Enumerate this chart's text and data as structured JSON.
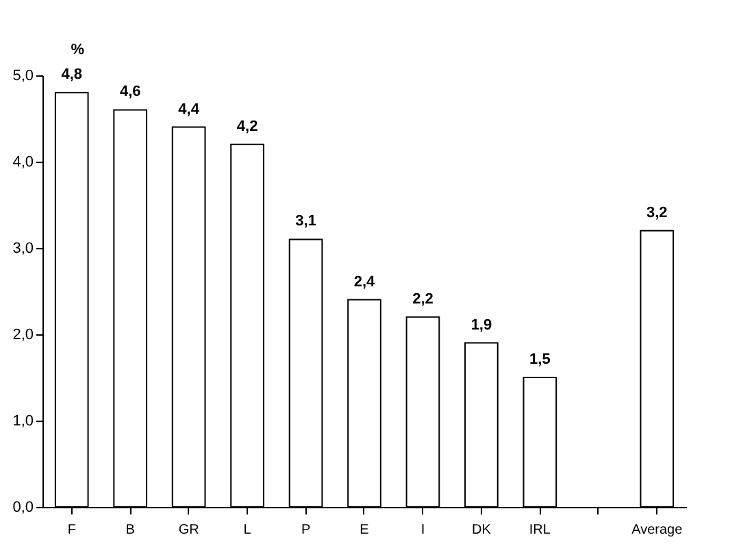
{
  "chart_data": {
    "type": "bar",
    "ylabel": "%",
    "categories": [
      "F",
      "B",
      "GR",
      "L",
      "P",
      "E",
      "I",
      "DK",
      "IRL",
      null,
      "Average"
    ],
    "values": [
      4.8,
      4.6,
      4.4,
      4.2,
      3.1,
      2.4,
      2.2,
      1.9,
      1.5,
      null,
      3.2
    ],
    "value_labels": [
      "4,8",
      "4,6",
      "4,4",
      "4,2",
      "3,1",
      "2,4",
      "2,2",
      "1,9",
      "1,5",
      null,
      "3,2"
    ],
    "color": "#ffffff",
    "ylim": [
      0,
      5
    ],
    "yticks": [
      {
        "value": 0,
        "label": "0,0"
      },
      {
        "value": 1,
        "label": "1,0"
      },
      {
        "value": 2,
        "label": "2,0"
      },
      {
        "value": 3,
        "label": "3,0"
      },
      {
        "value": 4,
        "label": "4,0"
      },
      {
        "value": 5,
        "label": "5,0"
      }
    ],
    "grid": false
  }
}
